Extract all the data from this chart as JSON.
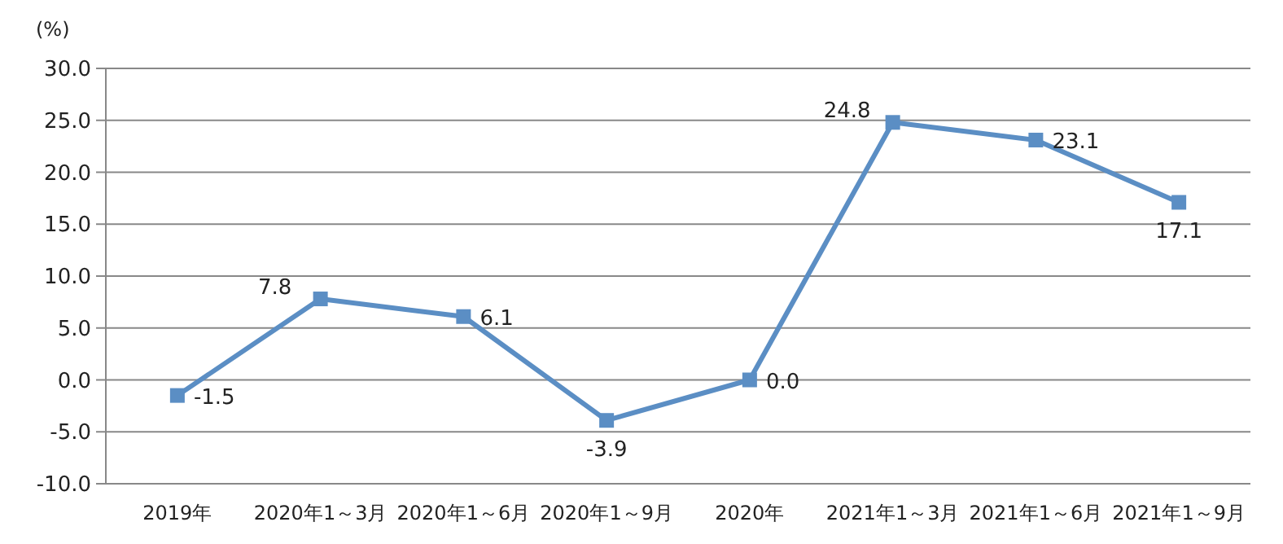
{
  "chart_data": {
    "type": "line",
    "ylabel": "(%)",
    "categories": [
      "2019年",
      "2020年1～3月",
      "2020年1～6月",
      "2020年1～9月",
      "2020年",
      "2021年1～3月",
      "2021年1～6月",
      "2021年1～9月"
    ],
    "series": [
      {
        "color": "#5b8ec4",
        "values": [
          -1.5,
          7.8,
          6.1,
          -3.9,
          0.0,
          24.8,
          23.1,
          17.1
        ],
        "value_labels": [
          "-1.5",
          "7.8",
          "6.1",
          "-3.9",
          "0.0",
          "24.8",
          "23.1",
          "17.1"
        ]
      }
    ],
    "ylim": [
      -10,
      30
    ],
    "yticks": [
      {
        "value": -10,
        "label": "-10.0"
      },
      {
        "value": -5,
        "label": "-5.0"
      },
      {
        "value": 0,
        "label": "0.0"
      },
      {
        "value": 5,
        "label": "5.0"
      },
      {
        "value": 10,
        "label": "10.0"
      },
      {
        "value": 15,
        "label": "15.0"
      },
      {
        "value": 20,
        "label": "20.0"
      },
      {
        "value": 25,
        "label": "25.0"
      },
      {
        "value": 30,
        "label": "30.0"
      }
    ],
    "grid": "y",
    "marker": "square",
    "line_style": "solid"
  }
}
